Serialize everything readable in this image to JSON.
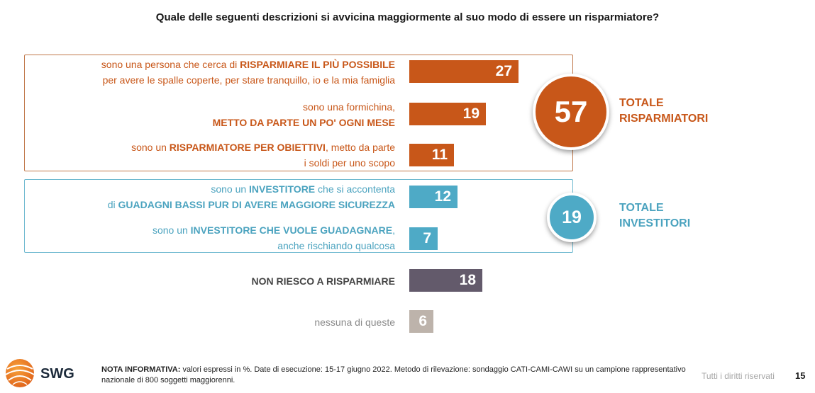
{
  "title": "Quale delle seguenti descrizioni si avvicina maggiormente al suo modo di essere un risparmiatore?",
  "colors": {
    "risparmiatori": "#c85719",
    "investitori": "#4eaac6",
    "non_riesco": "#635a6b",
    "nessuna": "#bdb3ab",
    "savers_text": "#c85719",
    "investors_text": "#4ba3bf",
    "neutral_text": "#444444",
    "light_text": "#8a8a8a"
  },
  "chart_data": {
    "type": "bar",
    "orientation": "horizontal",
    "unit": "%",
    "xlim": [
      0,
      27
    ],
    "categories": [
      "sono una persona che cerca di RISPARMIARE IL PIÙ POSSIBILE per avere le spalle coperte, per stare tranquillo, io e la mia famiglia",
      "sono una formichina, METTO DA PARTE UN PO' OGNI MESE",
      "sono un RISPARMIATORE PER OBIETTIVI, metto da parte i soldi per uno scopo",
      "sono un INVESTITORE che si accontenta di GUADAGNI BASSI PUR DI AVERE MAGGIORE SICUREZZA",
      "sono un INVESTITORE CHE VUOLE GUADAGNARE, anche rischiando qualcosa",
      "NON RIESCO A RISPARMIARE",
      "nessuna di queste"
    ],
    "values": [
      27,
      19,
      11,
      12,
      7,
      18,
      6
    ],
    "groups": [
      {
        "name": "TOTALE RISPARMIATORI",
        "total": 57,
        "items": [
          0,
          1,
          2
        ]
      },
      {
        "name": "TOTALE INVESTITORI",
        "total": 19,
        "items": [
          3,
          4
        ]
      }
    ]
  },
  "rows": [
    {
      "value": 27,
      "value_label": "27",
      "color_key": "risparmiatori",
      "text_key": "savers_text",
      "lines": [
        [
          {
            "t": "sono una persona che cerca di ",
            "b": false
          },
          {
            "t": "RISPARMIARE IL PIÙ POSSIBILE",
            "b": true
          }
        ],
        [
          {
            "t": "per avere le spalle coperte, per stare tranquillo, io e la mia famiglia",
            "b": false
          }
        ]
      ]
    },
    {
      "value": 19,
      "value_label": "19",
      "color_key": "risparmiatori",
      "text_key": "savers_text",
      "lines": [
        [
          {
            "t": "sono una formichina,",
            "b": false
          }
        ],
        [
          {
            "t": "METTO DA PARTE UN PO' OGNI MESE",
            "b": true
          }
        ]
      ]
    },
    {
      "value": 11,
      "value_label": "11",
      "color_key": "risparmiatori",
      "text_key": "savers_text",
      "lines": [
        [
          {
            "t": "sono un ",
            "b": false
          },
          {
            "t": "RISPARMIATORE PER OBIETTIVI",
            "b": true
          },
          {
            "t": ", metto da parte",
            "b": false
          }
        ],
        [
          {
            "t": "i soldi per uno scopo",
            "b": false
          }
        ]
      ]
    },
    {
      "value": 12,
      "value_label": "12",
      "color_key": "investitori",
      "text_key": "investors_text",
      "lines": [
        [
          {
            "t": "sono un ",
            "b": false
          },
          {
            "t": "INVESTITORE",
            "b": true
          },
          {
            "t": " che si accontenta",
            "b": false
          }
        ],
        [
          {
            "t": "di ",
            "b": false
          },
          {
            "t": "GUADAGNI BASSI PUR DI AVERE MAGGIORE SICUREZZA",
            "b": true
          }
        ]
      ]
    },
    {
      "value": 7,
      "value_label": "7",
      "color_key": "investitori",
      "text_key": "investors_text",
      "lines": [
        [
          {
            "t": "sono un ",
            "b": false
          },
          {
            "t": "INVESTITORE CHE VUOLE GUADAGNARE",
            "b": true
          },
          {
            "t": ",",
            "b": false
          }
        ],
        [
          {
            "t": "anche rischiando qualcosa",
            "b": false
          }
        ]
      ]
    },
    {
      "value": 18,
      "value_label": "18",
      "color_key": "non_riesco",
      "text_key": "neutral_text",
      "lines": [
        [
          {
            "t": "NON RIESCO A RISPARMIARE",
            "b": true
          }
        ]
      ]
    },
    {
      "value": 6,
      "value_label": "6",
      "color_key": "nessuna",
      "text_key": "light_text",
      "lines": [
        [
          {
            "t": "nessuna di queste",
            "b": false
          }
        ]
      ]
    }
  ],
  "totals": {
    "risparmiatori": {
      "value": "57",
      "line1": "TOTALE",
      "line2": "RISPARMIATORI"
    },
    "investitori": {
      "value": "19",
      "line1": "TOTALE",
      "line2": "INVESTITORI"
    }
  },
  "footer": {
    "note_label": "NOTA INFORMATIVA:",
    "note_text": " valori espressi in %. Date di esecuzione: 15-17 giugno 2022. Metodo di rilevazione: sondaggio CATI-CAMI-CAWI su un campione rappresentativo nazionale di 800 soggetti maggiorenni.",
    "rights": "Tutti i diritti riservati",
    "page": "15",
    "logo_text": "SWG"
  }
}
